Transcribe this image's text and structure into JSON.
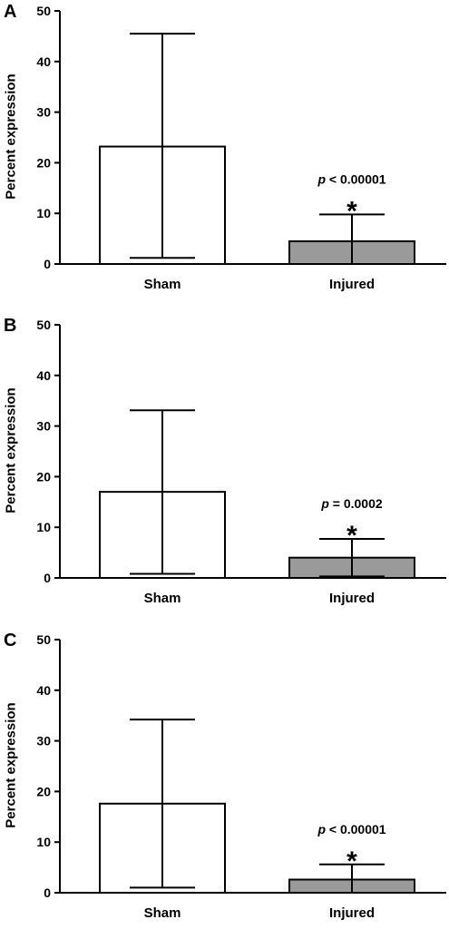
{
  "chart_data": [
    {
      "panel": "A",
      "type": "bar",
      "ylabel": "Percent expression",
      "ylim": [
        0,
        50
      ],
      "yticks": [
        0,
        10,
        20,
        30,
        40,
        50
      ],
      "categories": [
        "Sham",
        "Injured"
      ],
      "values": [
        23.2,
        4.5
      ],
      "error_upper": [
        45.5,
        9.8
      ],
      "error_lower": [
        1.2,
        0
      ],
      "bar_colors": [
        "#ffffff",
        "#9a9a9a"
      ],
      "annotation": {
        "p_symbol": "p",
        "p_text": "< 0.00001",
        "marker": "*"
      }
    },
    {
      "panel": "B",
      "type": "bar",
      "ylabel": "Percent expression",
      "ylim": [
        0,
        50
      ],
      "yticks": [
        0,
        10,
        20,
        30,
        40,
        50
      ],
      "categories": [
        "Sham",
        "Injured"
      ],
      "values": [
        17.0,
        4.0
      ],
      "error_upper": [
        33.1,
        7.7
      ],
      "error_lower": [
        0.8,
        0.3
      ],
      "bar_colors": [
        "#ffffff",
        "#9a9a9a"
      ],
      "annotation": {
        "p_symbol": "p",
        "p_text": "= 0.0002",
        "marker": "*"
      }
    },
    {
      "panel": "C",
      "type": "bar",
      "ylabel": "Percent expression",
      "ylim": [
        0,
        50
      ],
      "yticks": [
        0,
        10,
        20,
        30,
        40,
        50
      ],
      "categories": [
        "Sham",
        "Injured"
      ],
      "values": [
        17.6,
        2.6
      ],
      "error_upper": [
        34.2,
        5.6
      ],
      "error_lower": [
        1.0,
        0
      ],
      "bar_colors": [
        "#ffffff",
        "#9a9a9a"
      ],
      "annotation": {
        "p_symbol": "p",
        "p_text": "< 0.00001",
        "marker": "*"
      }
    }
  ]
}
